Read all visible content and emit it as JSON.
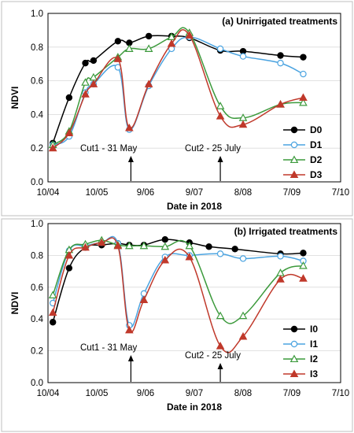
{
  "chart_data": [
    {
      "type": "line",
      "title": "(a) Unirrigated treatments",
      "xlabel": "Date in 2018",
      "ylabel": "NDVI",
      "x_tick_labels": [
        "10/04",
        "10/05",
        "9/06",
        "9/07",
        "8/08",
        "7/09",
        "7/10"
      ],
      "ylim": [
        0,
        1
      ],
      "y_ticks": [
        "0.0",
        "0.2",
        "0.4",
        "0.6",
        "0.8",
        "1.0"
      ],
      "grid": true,
      "legend_position": "right",
      "annotations": [
        {
          "text": "Cut1 - 31 May",
          "at": "31 May"
        },
        {
          "text": "Cut2 - 25 July",
          "at": "25 July"
        }
      ],
      "series": [
        {
          "name": "D0",
          "color": "#000000",
          "marker": "filled-circle",
          "x": [
            "2018-04-13",
            "2018-04-23",
            "2018-05-03",
            "2018-05-08",
            "2018-05-23",
            "2018-05-30",
            "2018-06-11",
            "2018-06-25",
            "2018-07-06",
            "2018-07-25",
            "2018-08-08",
            "2018-08-31",
            "2018-09-14"
          ],
          "y": [
            0.23,
            0.5,
            0.705,
            0.72,
            0.835,
            0.825,
            0.865,
            0.865,
            0.855,
            0.78,
            0.775,
            0.75,
            0.74
          ]
        },
        {
          "name": "D1",
          "color": "#4aa3e0",
          "marker": "open-circle",
          "x": [
            "2018-04-13",
            "2018-04-23",
            "2018-05-03",
            "2018-05-08",
            "2018-05-23",
            "2018-05-30",
            "2018-06-11",
            "2018-06-25",
            "2018-07-06",
            "2018-07-25",
            "2018-08-08",
            "2018-08-31",
            "2018-09-14"
          ],
          "y": [
            0.22,
            0.27,
            0.53,
            0.58,
            0.68,
            0.31,
            0.57,
            0.79,
            0.86,
            0.79,
            0.745,
            0.705,
            0.64
          ]
        },
        {
          "name": "D2",
          "color": "#3c9a3c",
          "marker": "open-triangle",
          "x": [
            "2018-04-13",
            "2018-04-23",
            "2018-05-03",
            "2018-05-08",
            "2018-05-23",
            "2018-05-30",
            "2018-06-11",
            "2018-06-25",
            "2018-07-06",
            "2018-07-25",
            "2018-08-08",
            "2018-08-31",
            "2018-09-14"
          ],
          "y": [
            0.22,
            0.3,
            0.59,
            0.62,
            0.74,
            0.79,
            0.79,
            0.86,
            0.885,
            0.45,
            0.38,
            0.46,
            0.47
          ]
        },
        {
          "name": "D3",
          "color": "#c0392b",
          "marker": "filled-triangle",
          "x": [
            "2018-04-13",
            "2018-04-23",
            "2018-05-03",
            "2018-05-08",
            "2018-05-23",
            "2018-05-30",
            "2018-06-11",
            "2018-06-25",
            "2018-07-06",
            "2018-07-25",
            "2018-08-08",
            "2018-08-31",
            "2018-09-14"
          ],
          "y": [
            0.2,
            0.29,
            0.52,
            0.58,
            0.73,
            0.32,
            0.58,
            0.82,
            0.87,
            0.39,
            0.34,
            0.46,
            0.5
          ]
        }
      ]
    },
    {
      "type": "line",
      "title": "(b) Irrigated treatments",
      "xlabel": "Date in 2018",
      "ylabel": "NDVI",
      "x_tick_labels": [
        "10/04",
        "10/05",
        "9/06",
        "9/07",
        "8/08",
        "7/09",
        "7/10"
      ],
      "ylim": [
        0,
        1
      ],
      "y_ticks": [
        "0.0",
        "0.2",
        "0.4",
        "0.6",
        "0.8",
        "1.0"
      ],
      "grid": true,
      "legend_position": "right",
      "annotations": [
        {
          "text": "Cut1 - 31 May",
          "at": "31 May"
        },
        {
          "text": "Cut2 - 25 July",
          "at": "25 July"
        }
      ],
      "series": [
        {
          "name": "I0",
          "color": "#000000",
          "marker": "filled-circle",
          "x": [
            "2018-04-13",
            "2018-04-23",
            "2018-05-03",
            "2018-05-13",
            "2018-05-23",
            "2018-05-30",
            "2018-06-08",
            "2018-06-21",
            "2018-07-06",
            "2018-07-18",
            "2018-08-03",
            "2018-08-31",
            "2018-09-14"
          ],
          "y": [
            0.38,
            0.72,
            0.85,
            0.865,
            0.875,
            0.865,
            0.865,
            0.9,
            0.88,
            0.855,
            0.84,
            0.81,
            0.815
          ]
        },
        {
          "name": "I1",
          "color": "#4aa3e0",
          "marker": "open-circle",
          "x": [
            "2018-04-13",
            "2018-04-23",
            "2018-05-03",
            "2018-05-13",
            "2018-05-23",
            "2018-05-30",
            "2018-06-08",
            "2018-06-21",
            "2018-07-06",
            "2018-07-25",
            "2018-08-08",
            "2018-08-31",
            "2018-09-14"
          ],
          "y": [
            0.5,
            0.83,
            0.86,
            0.88,
            0.875,
            0.36,
            0.56,
            0.79,
            0.8,
            0.81,
            0.78,
            0.795,
            0.765
          ]
        },
        {
          "name": "I2",
          "color": "#3c9a3c",
          "marker": "open-triangle",
          "x": [
            "2018-04-13",
            "2018-04-23",
            "2018-05-03",
            "2018-05-13",
            "2018-05-23",
            "2018-05-30",
            "2018-06-08",
            "2018-06-21",
            "2018-07-06",
            "2018-07-25",
            "2018-08-08",
            "2018-08-31",
            "2018-09-14"
          ],
          "y": [
            0.55,
            0.835,
            0.87,
            0.895,
            0.865,
            0.86,
            0.86,
            0.855,
            0.86,
            0.42,
            0.42,
            0.69,
            0.735
          ]
        },
        {
          "name": "I3",
          "color": "#c0392b",
          "marker": "filled-triangle",
          "x": [
            "2018-04-13",
            "2018-04-23",
            "2018-05-03",
            "2018-05-13",
            "2018-05-23",
            "2018-05-30",
            "2018-06-08",
            "2018-06-21",
            "2018-07-06",
            "2018-07-25",
            "2018-08-08",
            "2018-08-31",
            "2018-09-14"
          ],
          "y": [
            0.44,
            0.8,
            0.85,
            0.88,
            0.86,
            0.33,
            0.52,
            0.77,
            0.79,
            0.23,
            0.29,
            0.65,
            0.655
          ]
        }
      ]
    }
  ]
}
